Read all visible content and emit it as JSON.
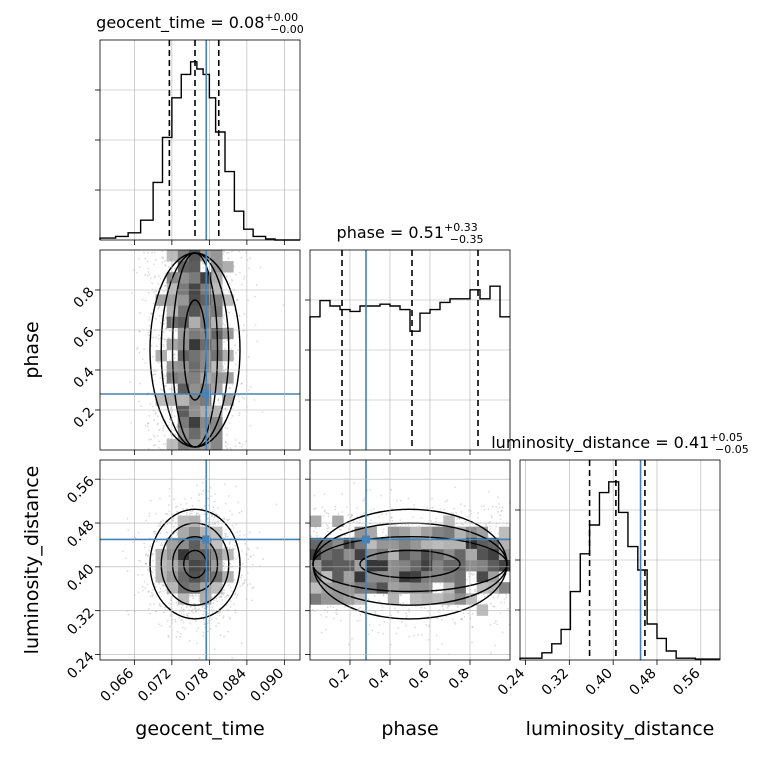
{
  "chart_data": {
    "type": "corner",
    "parameters": [
      "geocent_time",
      "phase",
      "luminosity_distance"
    ],
    "truth": {
      "geocent_time": 0.0775,
      "phase": 0.28,
      "luminosity_distance": 0.45
    },
    "colors": {
      "truth": "#4682b4",
      "hist": "#000000",
      "grid": "#b0b0b0",
      "points": "#9a9a9a"
    },
    "diagonal": [
      {
        "param": "geocent_time",
        "title": {
          "prefix": "geocent_time = 0.08",
          "sup": "+0.00",
          "sub": "−0.00"
        },
        "xlim": [
          0.0605,
          0.0925
        ],
        "ymax": 1.0,
        "bins": [
          [
            0.0605,
            0.011
          ],
          [
            0.063,
            0.02
          ],
          [
            0.065,
            0.04
          ],
          [
            0.067,
            0.11
          ],
          [
            0.069,
            0.32
          ],
          [
            0.0705,
            0.57
          ],
          [
            0.072,
            0.79
          ],
          [
            0.0735,
            0.92
          ],
          [
            0.075,
            0.99
          ],
          [
            0.076,
            0.95
          ],
          [
            0.077,
            0.92
          ],
          [
            0.078,
            0.79
          ],
          [
            0.079,
            0.6
          ],
          [
            0.0805,
            0.38
          ],
          [
            0.082,
            0.16
          ],
          [
            0.0835,
            0.06
          ],
          [
            0.085,
            0.02
          ],
          [
            0.087,
            0.006
          ],
          [
            0.0885,
            0.0
          ],
          [
            0.0925,
            0.0
          ]
        ],
        "quantiles": [
          0.0716,
          0.0757,
          0.0795
        ]
      },
      {
        "param": "phase",
        "title": {
          "prefix": "phase = 0.51",
          "sup": "+0.33",
          "sub": "−0.35"
        },
        "xlim": [
          0.0,
          1.0
        ],
        "ymax": 1.0,
        "bins": [
          [
            0.0,
            0.74
          ],
          [
            0.05,
            0.83
          ],
          [
            0.1,
            0.8
          ],
          [
            0.15,
            0.78
          ],
          [
            0.2,
            0.77
          ],
          [
            0.25,
            0.8
          ],
          [
            0.3,
            0.8
          ],
          [
            0.35,
            0.81
          ],
          [
            0.4,
            0.8
          ],
          [
            0.45,
            0.78
          ],
          [
            0.5,
            0.66
          ],
          [
            0.55,
            0.76
          ],
          [
            0.6,
            0.78
          ],
          [
            0.65,
            0.82
          ],
          [
            0.7,
            0.84
          ],
          [
            0.75,
            0.84
          ],
          [
            0.8,
            0.89
          ],
          [
            0.85,
            0.84
          ],
          [
            0.9,
            0.91
          ],
          [
            0.95,
            0.74
          ],
          [
            1.0,
            0.74
          ]
        ],
        "quantiles": [
          0.16,
          0.51,
          0.84
        ]
      },
      {
        "param": "luminosity_distance",
        "title": {
          "prefix": "luminosity_distance = 0.41",
          "sup": "+0.05",
          "sub": "−0.05"
        },
        "xlim": [
          0.23,
          0.595
        ],
        "ymax": 1.0,
        "bins": [
          [
            0.23,
            0.01
          ],
          [
            0.27,
            0.04
          ],
          [
            0.288,
            0.09
          ],
          [
            0.305,
            0.17
          ],
          [
            0.322,
            0.38
          ],
          [
            0.34,
            0.59
          ],
          [
            0.357,
            0.75
          ],
          [
            0.375,
            0.93
          ],
          [
            0.392,
            0.99
          ],
          [
            0.41,
            0.82
          ],
          [
            0.427,
            0.63
          ],
          [
            0.445,
            0.5
          ],
          [
            0.462,
            0.2
          ],
          [
            0.48,
            0.12
          ],
          [
            0.497,
            0.05
          ],
          [
            0.515,
            0.01
          ],
          [
            0.55,
            0.005
          ],
          [
            0.595,
            0.005
          ]
        ],
        "quantiles": [
          0.357,
          0.405,
          0.458
        ]
      }
    ],
    "panels2d": [
      {
        "x": "geocent_time",
        "y": "phase",
        "xlim": [
          0.0605,
          0.0925
        ],
        "ylim": [
          0.0,
          1.0
        ],
        "spread": [
          0.0036,
          0.5
        ],
        "mean": [
          0.0757,
          0.5
        ],
        "uniform_y": true
      },
      {
        "x": "geocent_time",
        "y": "luminosity_distance",
        "xlim": [
          0.0605,
          0.0925
        ],
        "ylim": [
          0.23,
          0.595
        ],
        "spread": [
          0.0036,
          0.05
        ],
        "mean": [
          0.0757,
          0.405
        ],
        "uniform_y": false
      },
      {
        "x": "phase",
        "y": "luminosity_distance",
        "xlim": [
          0.0,
          1.0
        ],
        "ylim": [
          0.23,
          0.595
        ],
        "spread": [
          0.5,
          0.05
        ],
        "mean": [
          0.5,
          0.405
        ],
        "uniform_x": true
      }
    ],
    "ticks": {
      "geocent_time": [
        "0.066",
        "0.072",
        "0.078",
        "0.084",
        "0.090"
      ],
      "phase": [
        "0.2",
        "0.4",
        "0.6",
        "0.8"
      ],
      "luminosity_distance": [
        "0.24",
        "0.32",
        "0.40",
        "0.48",
        "0.56"
      ]
    },
    "axis_labels": {
      "geocent_time": "geocent_time",
      "phase": "phase",
      "luminosity_distance": "luminosity_distance"
    }
  }
}
